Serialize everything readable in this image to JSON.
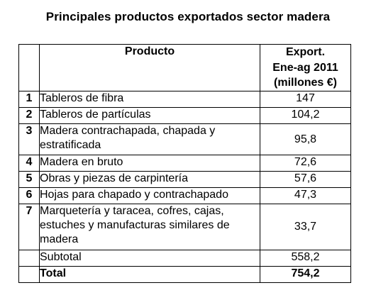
{
  "title": "Principales productos exportados sector madera",
  "table": {
    "header": {
      "product": "Producto",
      "value_line1": "Export.",
      "value_line2": "Ene-ag 2011",
      "value_line3": "(millones €)"
    },
    "rows": [
      {
        "num": "1",
        "product": "Tableros de fibra",
        "value": "147"
      },
      {
        "num": "2",
        "product": "Tableros de partículas",
        "value": "104,2"
      },
      {
        "num": "3",
        "product": "Madera contrachapada, chapada y estratificada",
        "value": "95,8"
      },
      {
        "num": "4",
        "product": "Madera en bruto",
        "value": "72,6"
      },
      {
        "num": "5",
        "product": "Obras y piezas de carpintería",
        "value": "57,6"
      },
      {
        "num": "6",
        "product": "Hojas para chapado y contrachapado",
        "value": "47,3"
      },
      {
        "num": "7",
        "product": "Marquetería y taracea, cofres, cajas, estuches y manufacturas similares de madera",
        "value": "33,7"
      }
    ],
    "subtotal": {
      "label": "Subtotal",
      "value": "558,2"
    },
    "total": {
      "label": "Total",
      "value": "754,2"
    }
  }
}
